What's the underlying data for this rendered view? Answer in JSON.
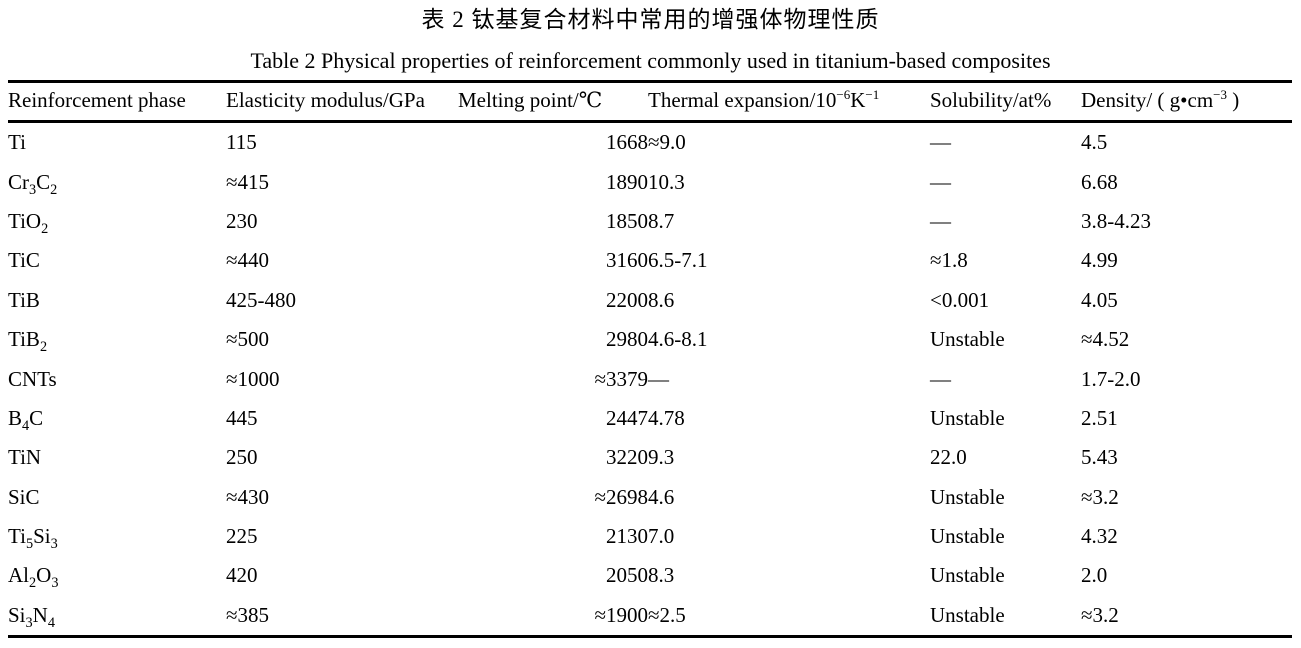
{
  "captions": {
    "chinese": "表 2  钛基复合材料中常用的增强体物理性质",
    "english": "Table 2  Physical properties of reinforcement commonly used in titanium-based composites"
  },
  "table": {
    "columns": [
      {
        "key": "phase",
        "label": "Reinforcement phase"
      },
      {
        "key": "modulus",
        "label": "Elasticity modulus/GPa"
      },
      {
        "key": "melting",
        "label": "Melting point/℃"
      },
      {
        "key": "expansion",
        "label": "Thermal expansion/10^{−6}K^{−1}"
      },
      {
        "key": "solubility",
        "label": "Solubility/at%"
      },
      {
        "key": "density",
        "label": "Density/ ( g•cm^{−3} )"
      }
    ],
    "rows": [
      [
        "Ti",
        "115",
        "1668",
        "≈9.0",
        "—",
        "4.5"
      ],
      [
        "Cr_{3}C_{2}",
        "≈415",
        "1890",
        "10.3",
        "—",
        "6.68"
      ],
      [
        "TiO_{2}",
        "230",
        "1850",
        "8.7",
        "—",
        "3.8-4.23"
      ],
      [
        "TiC",
        "≈440",
        "3160",
        "6.5-7.1",
        "≈1.8",
        "4.99"
      ],
      [
        "TiB",
        "425-480",
        "2200",
        "8.6",
        "<0.001",
        "4.05"
      ],
      [
        "TiB_{2}",
        "≈500",
        "2980",
        "4.6-8.1",
        "Unstable",
        "≈4.52"
      ],
      [
        "CNTs",
        "≈1000",
        "≈3379",
        "—",
        "—",
        "1.7-2.0"
      ],
      [
        "B_{4}C",
        "445",
        "2447",
        "4.78",
        "Unstable",
        "2.51"
      ],
      [
        "TiN",
        "250",
        "3220",
        "9.3",
        "22.0",
        "5.43"
      ],
      [
        "SiC",
        "≈430",
        "≈2698",
        "4.6",
        "Unstable",
        "≈3.2"
      ],
      [
        "Ti_{5}Si_{3}",
        "225",
        "2130",
        "7.0",
        "Unstable",
        "4.32"
      ],
      [
        "Al_{2}O_{3}",
        "420",
        "2050",
        "8.3",
        "Unstable",
        "2.0"
      ],
      [
        "Si_{3}N_{4}",
        "≈385",
        "≈1900",
        "≈2.5",
        "Unstable",
        "≈3.2"
      ]
    ]
  }
}
